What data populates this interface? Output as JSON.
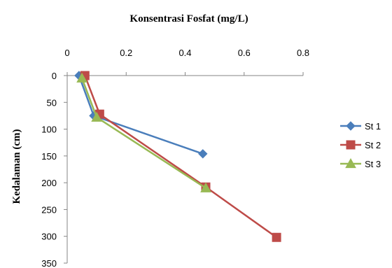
{
  "chart_data": {
    "type": "line",
    "title": "Konsentrasi Fosfat (mg/L)",
    "xlabel": "Konsentrasi Fosfat (mg/L)",
    "ylabel": "Kedalaman (cm)",
    "x_axis_position": "top",
    "y_axis_inverted": true,
    "xlim": [
      0,
      0.8
    ],
    "ylim": [
      0,
      350
    ],
    "xticks": [
      "0",
      "0.2",
      "0.4",
      "0.6",
      "0.8"
    ],
    "yticks": [
      "0",
      "50",
      "100",
      "150",
      "200",
      "250",
      "300",
      "350"
    ],
    "grid": false,
    "legend_position": "right",
    "series": [
      {
        "name": "St 1",
        "color": "#4a7ebb",
        "marker": "diamond",
        "points": [
          {
            "x": 0.04,
            "y": 0
          },
          {
            "x": 0.09,
            "y": 75
          },
          {
            "x": 0.46,
            "y": 146
          }
        ]
      },
      {
        "name": "St 2",
        "color": "#be4b48",
        "marker": "square",
        "points": [
          {
            "x": 0.06,
            "y": 0
          },
          {
            "x": 0.11,
            "y": 72
          },
          {
            "x": 0.47,
            "y": 208
          },
          {
            "x": 0.71,
            "y": 302
          }
        ]
      },
      {
        "name": "St 3",
        "color": "#98b954",
        "marker": "triangle",
        "points": [
          {
            "x": 0.05,
            "y": 5
          },
          {
            "x": 0.1,
            "y": 78
          },
          {
            "x": 0.47,
            "y": 210
          }
        ]
      }
    ]
  }
}
